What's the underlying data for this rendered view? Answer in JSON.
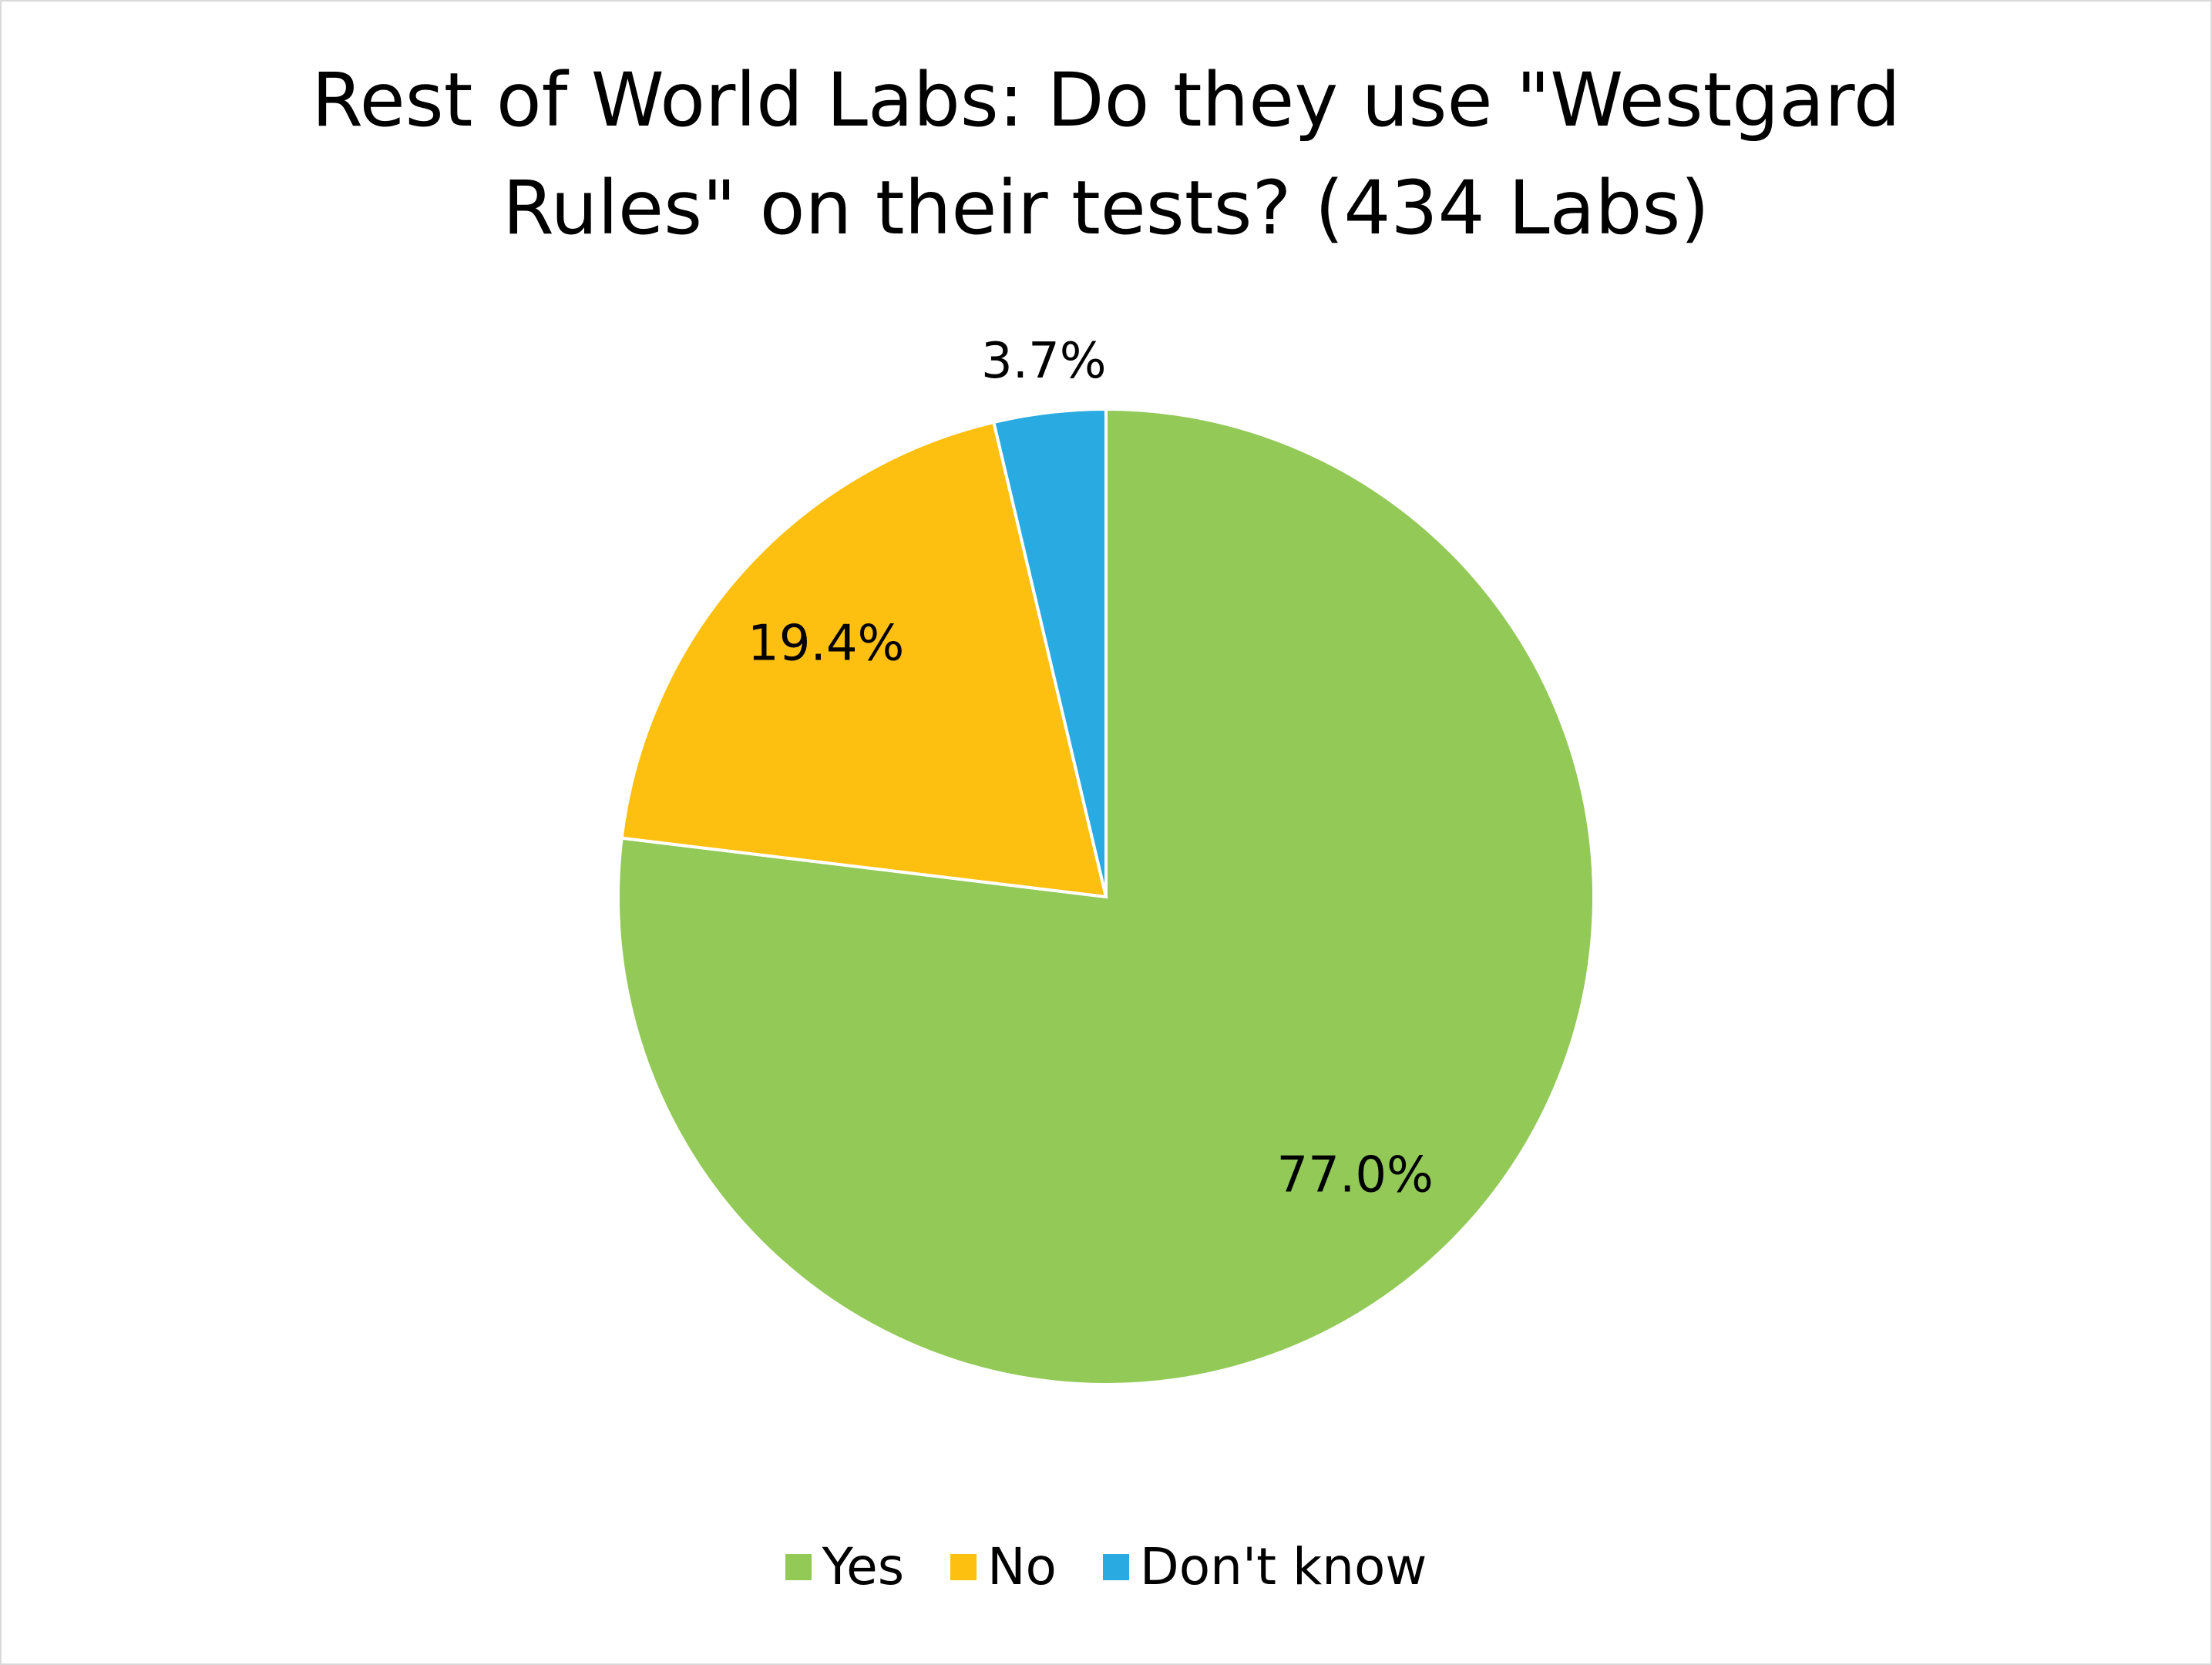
{
  "chart_data": {
    "type": "pie",
    "title": "Rest of World Labs: Do they use \"Westgard Rules\" on their tests? (434 Labs)",
    "categories": [
      "Yes",
      "No",
      "Don't know"
    ],
    "values": [
      77.0,
      19.4,
      3.7
    ],
    "value_labels": [
      "77.0%",
      "19.4%",
      "3.7%"
    ],
    "colors": [
      "#92c957",
      "#fdc010",
      "#29abe2"
    ],
    "legend": "bottom"
  }
}
